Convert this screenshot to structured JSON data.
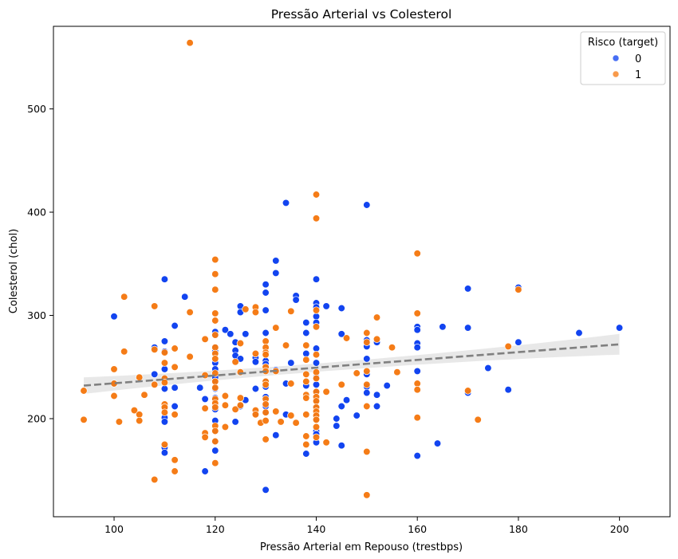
{
  "chart_data": {
    "type": "scatter",
    "title": "Pressão Arterial vs Colesterol",
    "xlabel": "Pressão Arterial em Repouso (trestbps)",
    "ylabel": "Colesterol (chol)",
    "xlim": [
      88,
      210
    ],
    "ylim": [
      105,
      580
    ],
    "xticks": [
      100,
      120,
      140,
      160,
      180,
      200
    ],
    "yticks": [
      200,
      300,
      400,
      500
    ],
    "grid": false,
    "legend": {
      "title": "Risco (target)",
      "placement": "top-right",
      "entries": [
        "0",
        "1"
      ]
    },
    "colors": {
      "0": "#0a3ef0",
      "1": "#f5780f",
      "trend": "#808080",
      "band": "#e6e6e6"
    },
    "series": [
      {
        "name": "0",
        "points": [
          [
            100,
            299
          ],
          [
            100,
            234
          ],
          [
            108,
            269
          ],
          [
            108,
            243
          ],
          [
            110,
            335
          ],
          [
            110,
            275
          ],
          [
            110,
            265
          ],
          [
            110,
            248
          ],
          [
            110,
            239
          ],
          [
            110,
            229
          ],
          [
            110,
            211
          ],
          [
            110,
            201
          ],
          [
            110,
            197
          ],
          [
            110,
            172
          ],
          [
            110,
            167
          ],
          [
            112,
            290
          ],
          [
            112,
            230
          ],
          [
            112,
            212
          ],
          [
            114,
            318
          ],
          [
            117,
            230
          ],
          [
            118,
            219
          ],
          [
            118,
            149
          ],
          [
            120,
            284
          ],
          [
            120,
            281
          ],
          [
            120,
            269
          ],
          [
            120,
            265
          ],
          [
            120,
            254
          ],
          [
            120,
            248
          ],
          [
            120,
            240
          ],
          [
            120,
            236
          ],
          [
            120,
            229
          ],
          [
            120,
            220
          ],
          [
            120,
            212
          ],
          [
            120,
            209
          ],
          [
            120,
            198
          ],
          [
            120,
            188
          ],
          [
            120,
            178
          ],
          [
            120,
            169
          ],
          [
            122,
            286
          ],
          [
            123,
            282
          ],
          [
            124,
            274
          ],
          [
            124,
            266
          ],
          [
            124,
            261
          ],
          [
            124,
            197
          ],
          [
            125,
            309
          ],
          [
            125,
            303
          ],
          [
            125,
            258
          ],
          [
            125,
            212
          ],
          [
            126,
            282
          ],
          [
            126,
            218
          ],
          [
            128,
            259
          ],
          [
            128,
            255
          ],
          [
            128,
            229
          ],
          [
            128,
            205
          ],
          [
            130,
            330
          ],
          [
            130,
            322
          ],
          [
            130,
            305
          ],
          [
            130,
            283
          ],
          [
            130,
            256
          ],
          [
            130,
            253
          ],
          [
            130,
            250
          ],
          [
            130,
            236
          ],
          [
            130,
            231
          ],
          [
            130,
            221
          ],
          [
            130,
            212
          ],
          [
            130,
            206
          ],
          [
            130,
            131
          ],
          [
            132,
            353
          ],
          [
            132,
            341
          ],
          [
            132,
            247
          ],
          [
            132,
            184
          ],
          [
            134,
            409
          ],
          [
            134,
            234
          ],
          [
            134,
            204
          ],
          [
            135,
            254
          ],
          [
            136,
            319
          ],
          [
            136,
            315
          ],
          [
            138,
            293
          ],
          [
            138,
            283
          ],
          [
            138,
            263
          ],
          [
            138,
            232
          ],
          [
            138,
            166
          ],
          [
            140,
            335
          ],
          [
            140,
            312
          ],
          [
            140,
            308
          ],
          [
            140,
            299
          ],
          [
            140,
            293
          ],
          [
            140,
            268
          ],
          [
            140,
            254
          ],
          [
            140,
            240
          ],
          [
            140,
            233
          ],
          [
            140,
            226
          ],
          [
            140,
            218
          ],
          [
            140,
            211
          ],
          [
            140,
            203
          ],
          [
            140,
            199
          ],
          [
            140,
            188
          ],
          [
            140,
            185
          ],
          [
            140,
            177
          ],
          [
            142,
            309
          ],
          [
            144,
            200
          ],
          [
            144,
            193
          ],
          [
            145,
            307
          ],
          [
            145,
            282
          ],
          [
            145,
            212
          ],
          [
            145,
            174
          ],
          [
            146,
            218
          ],
          [
            148,
            203
          ],
          [
            150,
            407
          ],
          [
            150,
            276
          ],
          [
            150,
            270
          ],
          [
            150,
            258
          ],
          [
            150,
            243
          ],
          [
            150,
            231
          ],
          [
            150,
            225
          ],
          [
            152,
            274
          ],
          [
            152,
            223
          ],
          [
            152,
            212
          ],
          [
            154,
            232
          ],
          [
            160,
            289
          ],
          [
            160,
            286
          ],
          [
            160,
            273
          ],
          [
            160,
            269
          ],
          [
            160,
            246
          ],
          [
            160,
            164
          ],
          [
            164,
            176
          ],
          [
            165,
            289
          ],
          [
            170,
            326
          ],
          [
            170,
            288
          ],
          [
            170,
            225
          ],
          [
            174,
            249
          ],
          [
            178,
            228
          ],
          [
            180,
            327
          ],
          [
            180,
            274
          ],
          [
            192,
            283
          ],
          [
            200,
            288
          ]
        ]
      },
      {
        "name": "1",
        "points": [
          [
            94,
            227
          ],
          [
            94,
            199
          ],
          [
            100,
            248
          ],
          [
            100,
            234
          ],
          [
            100,
            222
          ],
          [
            101,
            197
          ],
          [
            102,
            318
          ],
          [
            102,
            265
          ],
          [
            104,
            208
          ],
          [
            105,
            240
          ],
          [
            105,
            204
          ],
          [
            105,
            198
          ],
          [
            106,
            223
          ],
          [
            108,
            309
          ],
          [
            108,
            267
          ],
          [
            108,
            233
          ],
          [
            108,
            141
          ],
          [
            110,
            264
          ],
          [
            110,
            254
          ],
          [
            110,
            239
          ],
          [
            110,
            235
          ],
          [
            110,
            214
          ],
          [
            110,
            211
          ],
          [
            110,
            206
          ],
          [
            110,
            175
          ],
          [
            112,
            268
          ],
          [
            112,
            250
          ],
          [
            112,
            204
          ],
          [
            112,
            160
          ],
          [
            112,
            149
          ],
          [
            115,
            564
          ],
          [
            115,
            303
          ],
          [
            115,
            260
          ],
          [
            118,
            277
          ],
          [
            118,
            242
          ],
          [
            118,
            210
          ],
          [
            118,
            186
          ],
          [
            118,
            182
          ],
          [
            120,
            354
          ],
          [
            120,
            340
          ],
          [
            120,
            325
          ],
          [
            120,
            302
          ],
          [
            120,
            295
          ],
          [
            120,
            281
          ],
          [
            120,
            269
          ],
          [
            120,
            263
          ],
          [
            120,
            258
          ],
          [
            120,
            244
          ],
          [
            120,
            236
          ],
          [
            120,
            230
          ],
          [
            120,
            219
          ],
          [
            120,
            215
          ],
          [
            120,
            211
          ],
          [
            120,
            193
          ],
          [
            120,
            188
          ],
          [
            120,
            178
          ],
          [
            120,
            157
          ],
          [
            122,
            222
          ],
          [
            122,
            213
          ],
          [
            122,
            192
          ],
          [
            124,
            255
          ],
          [
            124,
            209
          ],
          [
            125,
            273
          ],
          [
            125,
            245
          ],
          [
            125,
            220
          ],
          [
            125,
            213
          ],
          [
            126,
            306
          ],
          [
            128,
            308
          ],
          [
            128,
            303
          ],
          [
            128,
            263
          ],
          [
            128,
            208
          ],
          [
            128,
            204
          ],
          [
            129,
            196
          ],
          [
            130,
            275
          ],
          [
            130,
            269
          ],
          [
            130,
            264
          ],
          [
            130,
            262
          ],
          [
            130,
            250
          ],
          [
            130,
            246
          ],
          [
            130,
            236
          ],
          [
            130,
            233
          ],
          [
            130,
            219
          ],
          [
            130,
            214
          ],
          [
            130,
            206
          ],
          [
            130,
            198
          ],
          [
            130,
            180
          ],
          [
            132,
            288
          ],
          [
            132,
            246
          ],
          [
            132,
            207
          ],
          [
            133,
            197
          ],
          [
            134,
            271
          ],
          [
            135,
            304
          ],
          [
            135,
            234
          ],
          [
            135,
            203
          ],
          [
            136,
            196
          ],
          [
            138,
            271
          ],
          [
            138,
            257
          ],
          [
            138,
            243
          ],
          [
            138,
            236
          ],
          [
            138,
            223
          ],
          [
            138,
            220
          ],
          [
            138,
            204
          ],
          [
            138,
            183
          ],
          [
            138,
            175
          ],
          [
            140,
            417
          ],
          [
            140,
            394
          ],
          [
            140,
            305
          ],
          [
            140,
            289
          ],
          [
            140,
            262
          ],
          [
            140,
            245
          ],
          [
            140,
            239
          ],
          [
            140,
            226
          ],
          [
            140,
            221
          ],
          [
            140,
            217
          ],
          [
            140,
            211
          ],
          [
            140,
            207
          ],
          [
            140,
            203
          ],
          [
            140,
            199
          ],
          [
            140,
            192
          ],
          [
            140,
            182
          ],
          [
            142,
            226
          ],
          [
            142,
            177
          ],
          [
            145,
            233
          ],
          [
            146,
            278
          ],
          [
            148,
            244
          ],
          [
            150,
            283
          ],
          [
            150,
            274
          ],
          [
            150,
            246
          ],
          [
            150,
            233
          ],
          [
            150,
            212
          ],
          [
            150,
            168
          ],
          [
            150,
            126
          ],
          [
            152,
            298
          ],
          [
            152,
            277
          ],
          [
            155,
            269
          ],
          [
            156,
            245
          ],
          [
            160,
            360
          ],
          [
            160,
            302
          ],
          [
            160,
            234
          ],
          [
            160,
            228
          ],
          [
            160,
            201
          ],
          [
            170,
            227
          ],
          [
            172,
            199
          ],
          [
            178,
            270
          ],
          [
            180,
            325
          ]
        ]
      }
    ],
    "trend": {
      "style": "dashed",
      "start": [
        94,
        232
      ],
      "end": [
        200,
        272
      ],
      "ci_halfwidth_ends": [
        8,
        10
      ],
      "ci_halfwidth_mid": 4
    }
  }
}
